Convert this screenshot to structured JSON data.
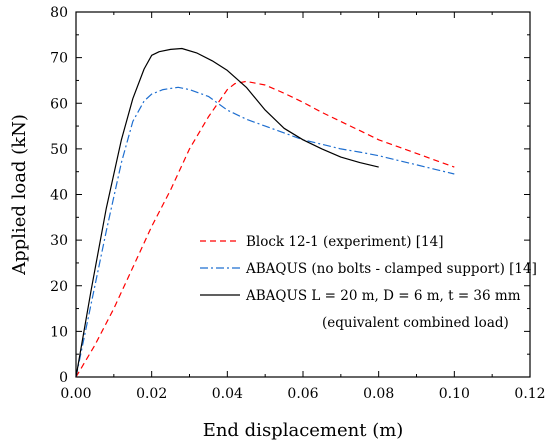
{
  "chart_data": {
    "type": "line",
    "xlabel": "End displacement (m)",
    "ylabel": "Applied load (kN)",
    "xlim": [
      0,
      0.12
    ],
    "ylim": [
      0,
      80
    ],
    "xticks": [
      0,
      0.02,
      0.04,
      0.06,
      0.08,
      0.1,
      0.12
    ],
    "xtick_labels": [
      "0.00",
      "0.02",
      "0.04",
      "0.06",
      "0.08",
      "0.10",
      "0.12"
    ],
    "yticks": [
      0,
      10,
      20,
      30,
      40,
      50,
      60,
      70,
      80
    ],
    "ytick_labels": [
      "0",
      "10",
      "20",
      "30",
      "40",
      "50",
      "60",
      "70",
      "80"
    ],
    "grid": false,
    "legend_position": "center-right",
    "series": [
      {
        "name": "Block 12-1 (experiment) [14]",
        "color": "#ff0000",
        "style": "dashed",
        "x": [
          0,
          0.005,
          0.01,
          0.015,
          0.02,
          0.025,
          0.03,
          0.035,
          0.04,
          0.042,
          0.045,
          0.05,
          0.055,
          0.06,
          0.065,
          0.07,
          0.075,
          0.08,
          0.085,
          0.09,
          0.095,
          0.1
        ],
        "y": [
          0,
          7,
          15,
          24,
          33,
          41,
          50,
          57,
          63,
          64.3,
          64.8,
          64,
          62.2,
          60.2,
          58,
          56,
          54,
          52,
          50.5,
          49,
          47.5,
          46
        ]
      },
      {
        "name": "ABAQUS (no bolts - clamped support) [14]",
        "color": "#1f6fd0",
        "style": "dashdot",
        "x": [
          0,
          0.004,
          0.008,
          0.012,
          0.015,
          0.018,
          0.02,
          0.023,
          0.027,
          0.03,
          0.035,
          0.04,
          0.045,
          0.05,
          0.055,
          0.06,
          0.065,
          0.07,
          0.075,
          0.08,
          0.085,
          0.09,
          0.095,
          0.1
        ],
        "y": [
          0,
          16,
          32,
          47,
          56,
          60.5,
          62,
          63,
          63.5,
          63,
          61.5,
          58.5,
          56.5,
          55,
          53.5,
          52,
          51,
          50,
          49.3,
          48.5,
          47.5,
          46.5,
          45.5,
          44.5
        ]
      },
      {
        "name": "ABAQUS L = 20 m, D = 6 m, t = 36 mm",
        "color": "#000000",
        "style": "solid",
        "x": [
          0,
          0.004,
          0.008,
          0.012,
          0.015,
          0.018,
          0.02,
          0.022,
          0.025,
          0.028,
          0.032,
          0.036,
          0.04,
          0.045,
          0.05,
          0.055,
          0.06,
          0.065,
          0.07,
          0.075,
          0.08
        ],
        "y": [
          0,
          19,
          37,
          52,
          61,
          67.5,
          70.5,
          71.3,
          71.8,
          72,
          71,
          69.3,
          67.2,
          63.5,
          58.5,
          54.5,
          52,
          50,
          48.2,
          47,
          46
        ]
      }
    ],
    "legend_extra_line": "(equivalent combined load)"
  }
}
